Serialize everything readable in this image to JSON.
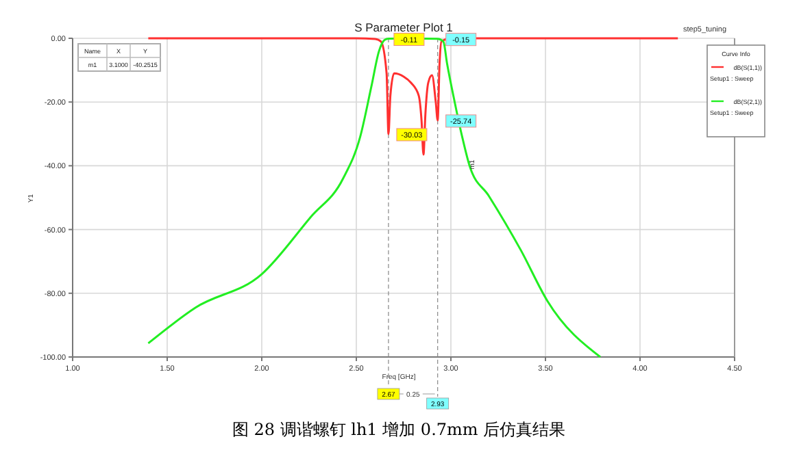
{
  "chart_data": {
    "type": "line",
    "title": "S Parameter Plot 1",
    "subtitle": "step5_tuning",
    "xlabel": "Freq [GHz]",
    "ylabel": "Y1",
    "legend_title": "Curve Info",
    "legend": "top right",
    "grid": true,
    "line_style": "solid",
    "xlim": [
      1,
      4.5
    ],
    "xticks": [
      {
        "value": 1,
        "label": "1.00"
      },
      {
        "value": 1.5,
        "label": "1.50"
      },
      {
        "value": 2,
        "label": "2.00"
      },
      {
        "value": 2.5,
        "label": "2.50"
      },
      {
        "value": 3,
        "label": "3.00"
      },
      {
        "value": 3.5,
        "label": "3.50"
      },
      {
        "value": 4,
        "label": "4.00"
      },
      {
        "value": 4.5,
        "label": "4.50"
      }
    ],
    "ylim": [
      -100,
      0
    ],
    "yticks": [
      {
        "value": -100,
        "label": "-100.00"
      },
      {
        "value": -80,
        "label": "-80.00"
      },
      {
        "value": -60,
        "label": "-60.00"
      },
      {
        "value": -40,
        "label": "-40.00"
      },
      {
        "value": -20,
        "label": "-20.00"
      },
      {
        "value": 0,
        "label": "0.00"
      }
    ],
    "series": [
      {
        "name": "dB(S(1,1))",
        "color": "#ff3030",
        "x": [
          1.4,
          2.0,
          2.5,
          2.6,
          2.63,
          2.66,
          2.67,
          2.68,
          2.7,
          2.75,
          2.79,
          2.83,
          2.845,
          2.855,
          2.865,
          2.88,
          2.9,
          2.92,
          2.93,
          2.94,
          2.95,
          3.0,
          3.5,
          4.2
        ],
        "values": [
          0,
          0,
          0,
          -0.2,
          -1,
          -11,
          -30.03,
          -18,
          -11,
          -12,
          -14,
          -18,
          -26,
          -36.5,
          -24,
          -14,
          -11.6,
          -20,
          -25.74,
          -8,
          -1,
          0,
          0,
          0
        ]
      },
      {
        "name": "dB(S(2,1))",
        "color": "#22ee22",
        "x": [
          1.4,
          1.65,
          2.0,
          2.26,
          2.43,
          2.52,
          2.58,
          2.62,
          2.65,
          2.67,
          2.8,
          2.93,
          2.96,
          2.98,
          3.02,
          3.06,
          3.1,
          3.2,
          3.37,
          3.51,
          3.79
        ],
        "values": [
          -95.7,
          -84.5,
          -74,
          -56,
          -44,
          -31,
          -15,
          -4,
          -0.5,
          -0.11,
          -0.05,
          -0.15,
          -1,
          -8,
          -20,
          -31,
          -40.2515,
          -49.4,
          -66.5,
          -82.4,
          -100
        ]
      }
    ],
    "ref_lines": [
      {
        "axis": "x",
        "value": 2.67,
        "label": "2.67",
        "line_style": "dashed"
      },
      {
        "axis": "x",
        "value": 2.93,
        "label": "2.93",
        "line_style": "dashed"
      }
    ],
    "annotations": [
      {
        "text": "-0.11",
        "x": 2.67,
        "y": -0.11
      },
      {
        "text": "-0.15",
        "x": 2.93,
        "y": -0.15
      },
      {
        "text": "-30.03",
        "x": 2.67,
        "y": -30.03
      },
      {
        "text": "-25.74",
        "x": 2.93,
        "y": -25.74
      },
      {
        "text": "m1",
        "x": 3.1,
        "y": -40.2515
      },
      "0.25",
      "Name",
      "X",
      "Y",
      "m1",
      "3.1000",
      "-40.2515",
      "Setup1 : Sweep",
      "Setup1 : Sweep",
      "图 28  调谐螺钉 lh1 增加 0.7mm 后仿真结果"
    ]
  }
}
